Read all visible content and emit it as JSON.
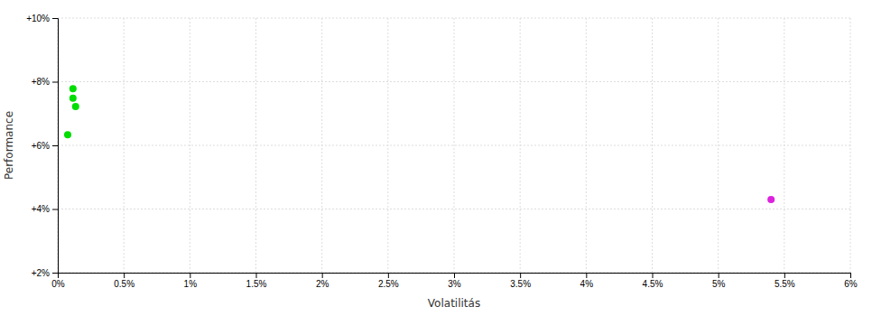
{
  "chart_data": {
    "type": "scatter",
    "x_label": "Volatilitás",
    "y_label": "Performance",
    "xlim": [
      0,
      0.06
    ],
    "ylim": [
      0.02,
      0.1
    ],
    "xticks": [
      {
        "value": 0.0,
        "label": "0%"
      },
      {
        "value": 0.005,
        "label": "0.5%"
      },
      {
        "value": 0.01,
        "label": "1%"
      },
      {
        "value": 0.015,
        "label": "1.5%"
      },
      {
        "value": 0.02,
        "label": "2%"
      },
      {
        "value": 0.025,
        "label": "2.5%"
      },
      {
        "value": 0.03,
        "label": "3%"
      },
      {
        "value": 0.035,
        "label": "3.5%"
      },
      {
        "value": 0.04,
        "label": "4%"
      },
      {
        "value": 0.045,
        "label": "4.5%"
      },
      {
        "value": 0.05,
        "label": "5%"
      },
      {
        "value": 0.055,
        "label": "5.5%"
      },
      {
        "value": 0.06,
        "label": "6%"
      }
    ],
    "yticks": [
      {
        "value": 0.02,
        "label": "+2%"
      },
      {
        "value": 0.04,
        "label": "+4%"
      },
      {
        "value": 0.06,
        "label": "+6%"
      },
      {
        "value": 0.08,
        "label": "+8%"
      },
      {
        "value": 0.1,
        "label": "+10%"
      }
    ],
    "grid": true,
    "series": [
      {
        "color": "#00dd00",
        "x": [
          0.00115,
          0.00115,
          0.00135,
          0.00075
        ],
        "values": [
          0.0778,
          0.0748,
          0.0722,
          0.0633
        ]
      },
      {
        "color": "#dd22dd",
        "x": [
          0.054
        ],
        "values": [
          0.043
        ]
      }
    ]
  }
}
